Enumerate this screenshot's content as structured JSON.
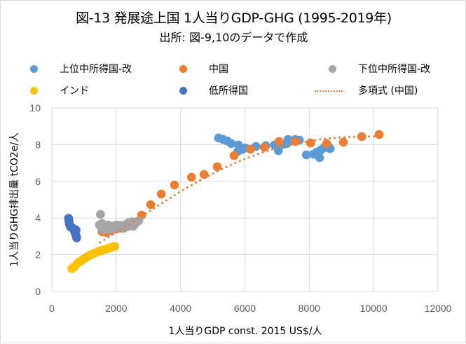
{
  "chart_data": {
    "type": "scatter",
    "title": "図-13 発展途上国 1人当りGDP-GHG (1995-2019年)",
    "subtitle": "出所: 図-9,10のデータで作成",
    "xlabel": "1人当りGDP   const. 2015 US$/人",
    "ylabel": "1人当りGHG排出量  tCO2e/人",
    "xlim": [
      0,
      12000
    ],
    "ylim": [
      0,
      10
    ],
    "xticks": [
      0,
      2000,
      4000,
      6000,
      8000,
      10000,
      12000
    ],
    "yticks": [
      0,
      2,
      4,
      6,
      8,
      10
    ],
    "grid": true,
    "legend_position": "top",
    "series": [
      {
        "name": "上位中所得国-改",
        "color": "#5b9bd5",
        "points": [
          [
            5180,
            8.36
          ],
          [
            5320,
            8.28
          ],
          [
            5450,
            8.2
          ],
          [
            5580,
            8.05
          ],
          [
            5800,
            7.98
          ],
          [
            5780,
            7.63
          ],
          [
            5920,
            7.74
          ],
          [
            6010,
            7.82
          ],
          [
            6340,
            7.9
          ],
          [
            6650,
            7.94
          ],
          [
            6920,
            7.98
          ],
          [
            7040,
            7.67
          ],
          [
            7190,
            8.02
          ],
          [
            7300,
            8.05
          ],
          [
            7340,
            8.28
          ],
          [
            7560,
            8.28
          ],
          [
            7690,
            8.24
          ],
          [
            7910,
            7.44
          ],
          [
            8130,
            7.48
          ],
          [
            8240,
            7.6
          ],
          [
            8320,
            7.29
          ],
          [
            8360,
            7.71
          ],
          [
            8450,
            7.82
          ],
          [
            8540,
            7.86
          ],
          [
            8600,
            7.9
          ],
          [
            8650,
            7.78
          ]
        ]
      },
      {
        "name": "中国",
        "color": "#ed7d31",
        "points": [
          [
            1560,
            3.25
          ],
          [
            1700,
            3.21
          ],
          [
            1850,
            3.3
          ],
          [
            2000,
            3.4
          ],
          [
            2150,
            3.45
          ],
          [
            2350,
            3.55
          ],
          [
            2600,
            3.7
          ],
          [
            2790,
            4.16
          ],
          [
            3070,
            4.73
          ],
          [
            3400,
            5.31
          ],
          [
            3810,
            5.8
          ],
          [
            4340,
            6.22
          ],
          [
            4730,
            6.37
          ],
          [
            5140,
            6.79
          ],
          [
            5660,
            7.4
          ],
          [
            6170,
            7.75
          ],
          [
            6600,
            7.86
          ],
          [
            7060,
            8.17
          ],
          [
            7560,
            8.17
          ],
          [
            8040,
            8.09
          ],
          [
            8540,
            8.05
          ],
          [
            9060,
            8.13
          ],
          [
            9630,
            8.44
          ],
          [
            10170,
            8.55
          ]
        ]
      },
      {
        "name": "下位中所得国-改",
        "color": "#a5a5a5",
        "points": [
          [
            1510,
            4.2
          ],
          [
            1480,
            3.62
          ],
          [
            1550,
            3.45
          ],
          [
            1600,
            3.35
          ],
          [
            1680,
            3.55
          ],
          [
            1750,
            3.62
          ],
          [
            1820,
            3.48
          ],
          [
            1900,
            3.55
          ],
          [
            1950,
            3.4
          ],
          [
            2050,
            3.5
          ],
          [
            2120,
            3.6
          ],
          [
            2200,
            3.52
          ],
          [
            2300,
            3.65
          ],
          [
            2380,
            3.75
          ],
          [
            2450,
            3.62
          ],
          [
            2530,
            3.55
          ],
          [
            2600,
            3.7
          ],
          [
            2650,
            3.8
          ],
          [
            2700,
            3.85
          ],
          [
            1560,
            3.7
          ],
          [
            1650,
            3.4
          ],
          [
            1800,
            3.38
          ],
          [
            2000,
            3.62
          ],
          [
            2250,
            3.45
          ],
          [
            2500,
            3.8
          ]
        ]
      },
      {
        "name": "インド",
        "color": "#ffc000",
        "points": [
          [
            620,
            1.25
          ],
          [
            700,
            1.35
          ],
          [
            780,
            1.5
          ],
          [
            850,
            1.6
          ],
          [
            920,
            1.68
          ],
          [
            1000,
            1.78
          ],
          [
            1080,
            1.88
          ],
          [
            1160,
            1.95
          ],
          [
            1240,
            2.02
          ],
          [
            1320,
            2.08
          ],
          [
            1400,
            2.15
          ],
          [
            1480,
            2.2
          ],
          [
            1560,
            2.25
          ],
          [
            1640,
            2.28
          ],
          [
            1720,
            2.32
          ],
          [
            1800,
            2.38
          ],
          [
            1880,
            2.42
          ],
          [
            1950,
            2.45
          ]
        ]
      },
      {
        "name": "低所得国",
        "color": "#4472c4",
        "points": [
          [
            520,
            3.98
          ],
          [
            530,
            3.85
          ],
          [
            540,
            3.72
          ],
          [
            560,
            3.62
          ],
          [
            580,
            3.52
          ],
          [
            610,
            3.48
          ],
          [
            650,
            3.45
          ],
          [
            680,
            3.4
          ],
          [
            700,
            3.3
          ],
          [
            720,
            3.2
          ],
          [
            740,
            3.1
          ],
          [
            760,
            3.0
          ],
          [
            770,
            2.92
          ],
          [
            750,
            3.35
          ]
        ]
      }
    ],
    "trendline": {
      "name": "多項式 (中国)",
      "color": "#ed7d31",
      "type": "polynomial",
      "based_on": "中国",
      "points": [
        [
          1500,
          2.67
        ],
        [
          2000,
          3.22
        ],
        [
          2500,
          3.78
        ],
        [
          3000,
          4.33
        ],
        [
          3500,
          4.9
        ],
        [
          4000,
          5.45
        ],
        [
          4500,
          5.95
        ],
        [
          5000,
          6.42
        ],
        [
          5500,
          6.85
        ],
        [
          6000,
          7.22
        ],
        [
          6500,
          7.55
        ],
        [
          7000,
          7.82
        ],
        [
          7500,
          8.03
        ],
        [
          8000,
          8.2
        ],
        [
          8500,
          8.32
        ],
        [
          9000,
          8.4
        ],
        [
          9500,
          8.43
        ],
        [
          10000,
          8.45
        ],
        [
          10200,
          8.45
        ]
      ]
    }
  },
  "legend": [
    {
      "label": "上位中所得国-改",
      "color": "#5b9bd5",
      "kind": "marker"
    },
    {
      "label": "中国",
      "color": "#ed7d31",
      "kind": "marker"
    },
    {
      "label": "下位中所得国-改",
      "color": "#a5a5a5",
      "kind": "marker"
    },
    {
      "label": "インド",
      "color": "#ffc000",
      "kind": "marker"
    },
    {
      "label": "低所得国",
      "color": "#4472c4",
      "kind": "marker"
    },
    {
      "label": "多項式 (中国)",
      "color": "#ed7d31",
      "kind": "dotted-line"
    }
  ]
}
